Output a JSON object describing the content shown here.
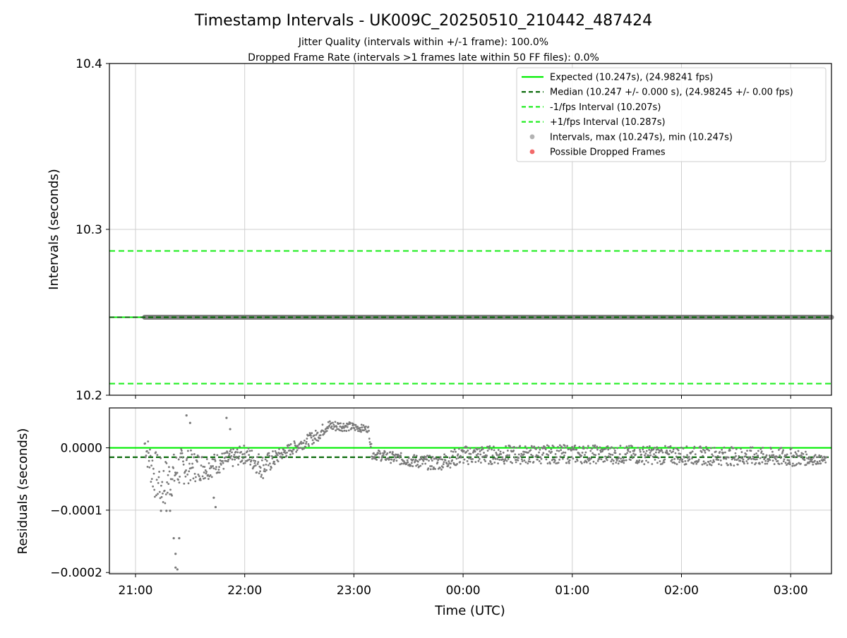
{
  "figure": {
    "title": "Timestamp Intervals - UK009C_20250510_210442_487424",
    "subtitle_1": "Jitter Quality (intervals within +/-1 frame): 100.0%",
    "subtitle_2": "Dropped Frame Rate (intervals >1 frames late within 50 FF files): 0.0%"
  },
  "chart_data": [
    {
      "type": "line",
      "ylabel": "Intervals (seconds)",
      "y_ticks": [
        "10.2",
        "10.3",
        "10.4"
      ],
      "ylim": [
        10.2,
        10.4
      ],
      "x_ticks": [
        "21:00",
        "22:00",
        "23:00",
        "00:00",
        "01:00",
        "02:00",
        "03:00"
      ],
      "grid": true,
      "legend_position": "upper-right",
      "series": [
        {
          "name": "Expected (10.247s), (24.98241 fps)",
          "style": "solid",
          "color": "#00ee00",
          "value": 10.247
        },
        {
          "name": "Median (10.247 +/- 0.000 s), (24.98245 +/- 0.00 fps)",
          "style": "dashed",
          "color": "#006400",
          "value": 10.247
        },
        {
          "name": "-1/fps Interval (10.207s)",
          "style": "dashed",
          "color": "#22ee22",
          "value": 10.207
        },
        {
          "name": "+1/fps Interval (10.287s)",
          "style": "dashed",
          "color": "#22ee22",
          "value": 10.287
        },
        {
          "name": "Intervals, max (10.247s), min (10.247s)",
          "style": "marker",
          "color": "#808080",
          "value": 10.247,
          "x_start": "21:05"
        },
        {
          "name": "Possible Dropped Frames",
          "style": "marker",
          "color": "#f05050",
          "points": []
        }
      ]
    },
    {
      "type": "scatter",
      "ylabel": "Residuals (seconds)",
      "xlabel": "Time (UTC)",
      "y_ticks": [
        "0.0000",
        "−0.0001",
        "−0.0002"
      ],
      "ylim": [
        -0.000202,
        6.4e-05
      ],
      "x_ticks": [
        "21:00",
        "22:00",
        "23:00",
        "00:00",
        "01:00",
        "02:00",
        "03:00"
      ],
      "grid": true,
      "reference_lines": [
        {
          "label": "expected",
          "value": 0.0,
          "style": "solid",
          "color": "#00ee00"
        },
        {
          "label": "median",
          "value": -1.5e-05,
          "style": "dashed",
          "color": "#006400"
        }
      ],
      "residual_profile": [
        {
          "t": "21:05",
          "y": 7e-06,
          "spread": 2e-05
        },
        {
          "t": "21:10",
          "y": -4e-05,
          "spread": 4e-05
        },
        {
          "t": "21:15",
          "y": -6e-05,
          "spread": 4e-05
        },
        {
          "t": "21:25",
          "y": -3e-05,
          "spread": 3e-05
        },
        {
          "t": "21:40",
          "y": -3e-05,
          "spread": 2e-05
        },
        {
          "t": "21:50",
          "y": -2e-05,
          "spread": 1.5e-05
        },
        {
          "t": "22:00",
          "y": -1e-05,
          "spread": 1.5e-05
        },
        {
          "t": "22:10",
          "y": -3e-05,
          "spread": 2e-05
        },
        {
          "t": "22:20",
          "y": -1e-05,
          "spread": 1e-05
        },
        {
          "t": "22:30",
          "y": 5e-06,
          "spread": 1e-05
        },
        {
          "t": "22:40",
          "y": 2e-05,
          "spread": 1e-05
        },
        {
          "t": "22:45",
          "y": 3.5e-05,
          "spread": 1e-05
        },
        {
          "t": "22:55",
          "y": 3.5e-05,
          "spread": 8e-06
        },
        {
          "t": "23:08",
          "y": 3e-05,
          "spread": 5e-06
        },
        {
          "t": "23:10",
          "y": -1e-05,
          "spread": 8e-06
        },
        {
          "t": "23:30",
          "y": -2e-05,
          "spread": 1e-05
        },
        {
          "t": "23:45",
          "y": -2.5e-05,
          "spread": 1.2e-05
        },
        {
          "t": "00:00",
          "y": -1.2e-05,
          "spread": 1.5e-05
        },
        {
          "t": "01:00",
          "y": -1e-05,
          "spread": 1.5e-05
        },
        {
          "t": "02:00",
          "y": -1.2e-05,
          "spread": 1.5e-05
        },
        {
          "t": "03:00",
          "y": -1.5e-05,
          "spread": 1.5e-05
        },
        {
          "t": "03:20",
          "y": -2e-05,
          "spread": 5e-06
        }
      ],
      "residual_outliers": [
        {
          "t": "21:14",
          "y": -0.000101
        },
        {
          "t": "21:17",
          "y": -0.000101
        },
        {
          "t": "21:19",
          "y": -0.000101
        },
        {
          "t": "21:21",
          "y": -0.000145
        },
        {
          "t": "21:22",
          "y": -0.00017
        },
        {
          "t": "21:22",
          "y": -0.000192
        },
        {
          "t": "21:23",
          "y": -0.000195
        },
        {
          "t": "21:24",
          "y": -0.000145
        },
        {
          "t": "21:28",
          "y": 5.2e-05
        },
        {
          "t": "21:30",
          "y": 4e-05
        },
        {
          "t": "21:43",
          "y": -8e-05
        },
        {
          "t": "21:44",
          "y": -9.5e-05
        },
        {
          "t": "21:50",
          "y": 4.8e-05
        },
        {
          "t": "21:52",
          "y": 3e-05
        }
      ]
    }
  ]
}
